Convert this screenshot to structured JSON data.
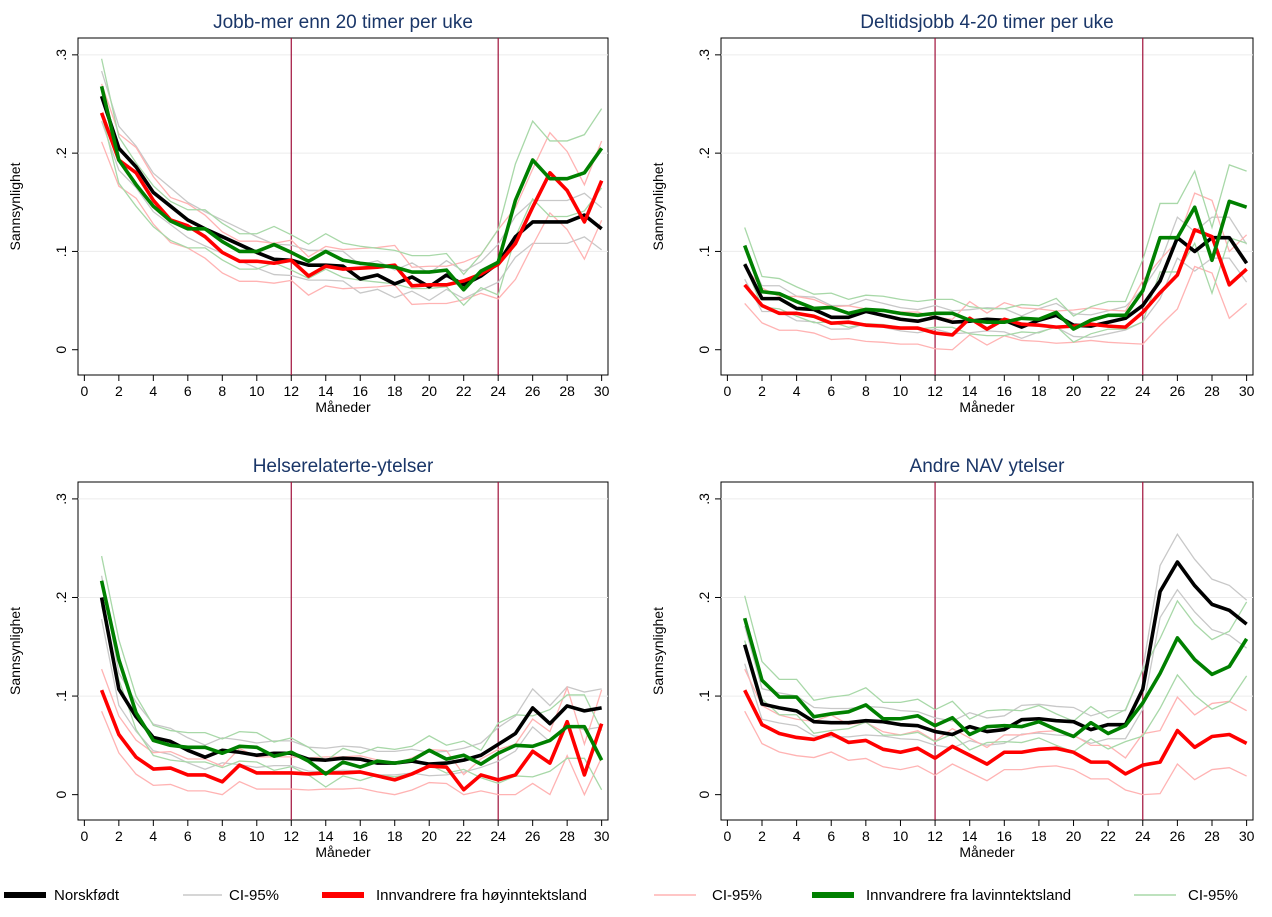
{
  "chart_data": [
    {
      "type": "line",
      "title": "Jobb-mer enn 20 timer per uke",
      "xlabel": "Måneder",
      "ylabel": "Sannsynlighet",
      "xlim": [
        0,
        30
      ],
      "ylim": [
        0,
        0.3
      ],
      "xticks": [
        0,
        2,
        4,
        6,
        8,
        10,
        12,
        14,
        16,
        18,
        20,
        22,
        24,
        26,
        28,
        30
      ],
      "yticks": [
        0,
        0.1,
        0.2,
        0.3
      ],
      "ytick_labels": [
        "0",
        ".1",
        ".2",
        ".3"
      ],
      "vlines": [
        12,
        24
      ],
      "grid": "horizontal",
      "x": [
        1,
        2,
        3,
        4,
        5,
        6,
        7,
        8,
        9,
        10,
        11,
        12,
        13,
        14,
        15,
        16,
        17,
        18,
        19,
        20,
        21,
        22,
        23,
        24,
        25,
        26,
        27,
        28,
        29,
        30
      ],
      "series": [
        {
          "name": "Norskfødt",
          "values": [
            0.258,
            0.205,
            0.186,
            0.16,
            0.146,
            0.132,
            0.123,
            0.115,
            0.107,
            0.099,
            0.092,
            0.091,
            0.086,
            0.086,
            0.085,
            0.072,
            0.076,
            0.067,
            0.074,
            0.064,
            0.076,
            0.066,
            0.075,
            0.088,
            0.115,
            0.13,
            0.13,
            0.13,
            0.137,
            0.123
          ]
        },
        {
          "name": "Innvandrere fra høyinntektsland",
          "values": [
            0.241,
            0.193,
            0.18,
            0.152,
            0.132,
            0.126,
            0.115,
            0.099,
            0.09,
            0.09,
            0.088,
            0.091,
            0.075,
            0.085,
            0.082,
            0.083,
            0.084,
            0.086,
            0.065,
            0.066,
            0.066,
            0.07,
            0.077,
            0.087,
            0.108,
            0.145,
            0.18,
            0.162,
            0.13,
            0.172
          ]
        },
        {
          "name": "Innvandrere fra lavinntektsland",
          "values": [
            0.268,
            0.193,
            0.168,
            0.146,
            0.131,
            0.123,
            0.123,
            0.11,
            0.1,
            0.1,
            0.107,
            0.099,
            0.09,
            0.1,
            0.091,
            0.088,
            0.086,
            0.084,
            0.079,
            0.079,
            0.081,
            0.061,
            0.08,
            0.089,
            0.152,
            0.193,
            0.174,
            0.174,
            0.18,
            0.205
          ]
        }
      ]
    },
    {
      "type": "line",
      "title": "Deltidsjobb 4-20 timer per uke",
      "xlabel": "Måneder",
      "ylabel": "Sannsynlighet",
      "xlim": [
        0,
        30
      ],
      "ylim": [
        0,
        0.3
      ],
      "xticks": [
        0,
        2,
        4,
        6,
        8,
        10,
        12,
        14,
        16,
        18,
        20,
        22,
        24,
        26,
        28,
        30
      ],
      "yticks": [
        0,
        0.1,
        0.2,
        0.3
      ],
      "ytick_labels": [
        "0",
        ".1",
        ".2",
        ".3"
      ],
      "vlines": [
        12,
        24
      ],
      "grid": "horizontal",
      "x": [
        1,
        2,
        3,
        4,
        5,
        6,
        7,
        8,
        9,
        10,
        11,
        12,
        13,
        14,
        15,
        16,
        17,
        18,
        19,
        20,
        21,
        22,
        23,
        24,
        25,
        26,
        27,
        28,
        29,
        30
      ],
      "series": [
        {
          "name": "Norskfødt",
          "values": [
            0.087,
            0.052,
            0.052,
            0.042,
            0.041,
            0.033,
            0.033,
            0.039,
            0.035,
            0.031,
            0.029,
            0.033,
            0.028,
            0.029,
            0.031,
            0.03,
            0.023,
            0.03,
            0.035,
            0.025,
            0.024,
            0.028,
            0.032,
            0.045,
            0.07,
            0.114,
            0.1,
            0.114,
            0.114,
            0.088
          ]
        },
        {
          "name": "Innvandrere fra høyinntektsland",
          "values": [
            0.066,
            0.045,
            0.037,
            0.037,
            0.034,
            0.027,
            0.028,
            0.025,
            0.024,
            0.022,
            0.022,
            0.017,
            0.015,
            0.032,
            0.021,
            0.031,
            0.026,
            0.025,
            0.023,
            0.024,
            0.026,
            0.024,
            0.023,
            0.038,
            0.058,
            0.076,
            0.122,
            0.115,
            0.066,
            0.082
          ]
        },
        {
          "name": "Innvandrere fra lavinntektsland",
          "values": [
            0.106,
            0.059,
            0.057,
            0.049,
            0.042,
            0.043,
            0.037,
            0.041,
            0.04,
            0.037,
            0.035,
            0.037,
            0.037,
            0.03,
            0.028,
            0.028,
            0.032,
            0.031,
            0.038,
            0.021,
            0.03,
            0.035,
            0.035,
            0.06,
            0.114,
            0.114,
            0.145,
            0.091,
            0.151,
            0.145
          ]
        }
      ]
    },
    {
      "type": "line",
      "title": "Helserelaterte-ytelser",
      "xlabel": "Måneder",
      "ylabel": "Sannsynlighet",
      "xlim": [
        0,
        30
      ],
      "ylim": [
        0,
        0.3
      ],
      "xticks": [
        0,
        2,
        4,
        6,
        8,
        10,
        12,
        14,
        16,
        18,
        20,
        22,
        24,
        26,
        28,
        30
      ],
      "yticks": [
        0,
        0.1,
        0.2,
        0.3
      ],
      "ytick_labels": [
        "0",
        ".1",
        ".2",
        ".3"
      ],
      "vlines": [
        12,
        24
      ],
      "grid": "horizontal",
      "x": [
        1,
        2,
        3,
        4,
        5,
        6,
        7,
        8,
        9,
        10,
        11,
        12,
        13,
        14,
        15,
        16,
        17,
        18,
        19,
        20,
        21,
        22,
        23,
        24,
        25,
        26,
        27,
        28,
        29,
        30
      ],
      "series": [
        {
          "name": "Norskfødt",
          "values": [
            0.2,
            0.107,
            0.079,
            0.058,
            0.054,
            0.045,
            0.038,
            0.045,
            0.043,
            0.04,
            0.042,
            0.042,
            0.036,
            0.035,
            0.037,
            0.036,
            0.032,
            0.032,
            0.034,
            0.031,
            0.032,
            0.035,
            0.04,
            0.051,
            0.062,
            0.088,
            0.072,
            0.09,
            0.085,
            0.088
          ]
        },
        {
          "name": "Innvandrere fra høyinntektsland",
          "values": [
            0.106,
            0.061,
            0.038,
            0.026,
            0.027,
            0.02,
            0.02,
            0.013,
            0.03,
            0.022,
            0.022,
            0.022,
            0.021,
            0.022,
            0.022,
            0.023,
            0.019,
            0.015,
            0.021,
            0.029,
            0.028,
            0.005,
            0.02,
            0.015,
            0.02,
            0.044,
            0.032,
            0.074,
            0.02,
            0.072
          ]
        },
        {
          "name": "Innvandrere fra lavinntektsland",
          "values": [
            0.217,
            0.137,
            0.083,
            0.055,
            0.05,
            0.048,
            0.048,
            0.042,
            0.049,
            0.048,
            0.039,
            0.043,
            0.034,
            0.021,
            0.033,
            0.028,
            0.034,
            0.032,
            0.035,
            0.045,
            0.036,
            0.04,
            0.031,
            0.042,
            0.05,
            0.049,
            0.055,
            0.069,
            0.069,
            0.035
          ]
        }
      ]
    },
    {
      "type": "line",
      "title": "Andre NAV ytelser",
      "xlabel": "Måneder",
      "ylabel": "Sannsynlighet",
      "xlim": [
        0,
        30
      ],
      "ylim": [
        0,
        0.3
      ],
      "xticks": [
        0,
        2,
        4,
        6,
        8,
        10,
        12,
        14,
        16,
        18,
        20,
        22,
        24,
        26,
        28,
        30
      ],
      "yticks": [
        0,
        0.1,
        0.2,
        0.3
      ],
      "ytick_labels": [
        "0",
        ".1",
        ".2",
        ".3"
      ],
      "vlines": [
        12,
        24
      ],
      "grid": "horizontal",
      "x": [
        1,
        2,
        3,
        4,
        5,
        6,
        7,
        8,
        9,
        10,
        11,
        12,
        13,
        14,
        15,
        16,
        17,
        18,
        19,
        20,
        21,
        22,
        23,
        24,
        25,
        26,
        27,
        28,
        29,
        30
      ],
      "series": [
        {
          "name": "Norskfødt",
          "values": [
            0.152,
            0.092,
            0.088,
            0.085,
            0.074,
            0.073,
            0.073,
            0.075,
            0.074,
            0.071,
            0.07,
            0.064,
            0.061,
            0.069,
            0.064,
            0.066,
            0.076,
            0.077,
            0.075,
            0.074,
            0.066,
            0.071,
            0.071,
            0.107,
            0.206,
            0.236,
            0.212,
            0.193,
            0.187,
            0.173
          ]
        },
        {
          "name": "Innvandrere fra høyinntektsland",
          "values": [
            0.106,
            0.071,
            0.062,
            0.058,
            0.056,
            0.062,
            0.053,
            0.055,
            0.046,
            0.043,
            0.047,
            0.037,
            0.049,
            0.04,
            0.031,
            0.043,
            0.043,
            0.046,
            0.047,
            0.043,
            0.033,
            0.033,
            0.021,
            0.03,
            0.033,
            0.065,
            0.048,
            0.059,
            0.061,
            0.052
          ]
        },
        {
          "name": "Innvandrere fra lavinntektsland",
          "values": [
            0.179,
            0.116,
            0.099,
            0.099,
            0.079,
            0.082,
            0.084,
            0.091,
            0.077,
            0.077,
            0.08,
            0.07,
            0.078,
            0.061,
            0.069,
            0.07,
            0.069,
            0.074,
            0.066,
            0.059,
            0.073,
            0.062,
            0.07,
            0.093,
            0.123,
            0.159,
            0.137,
            0.122,
            0.13,
            0.158
          ]
        }
      ]
    }
  ],
  "legend": {
    "items": [
      {
        "label": "Norskfødt",
        "color": "#000000",
        "kind": "line"
      },
      {
        "label": "CI-95%",
        "color": "#c8c8c8",
        "kind": "ci"
      },
      {
        "label": "Innvandrere fra høyinntektsland",
        "color": "#ff0000",
        "kind": "line"
      },
      {
        "label": "CI-95%",
        "color": "#ffb3b3",
        "kind": "ci"
      },
      {
        "label": "Innvandrere fra lavinntektsland",
        "color": "#008000",
        "kind": "line"
      },
      {
        "label": "CI-95%",
        "color": "#a8d8a8",
        "kind": "ci"
      }
    ]
  },
  "colors": {
    "title": "#1a3668",
    "vline": "#a0103a",
    "grid": "#ececec"
  }
}
